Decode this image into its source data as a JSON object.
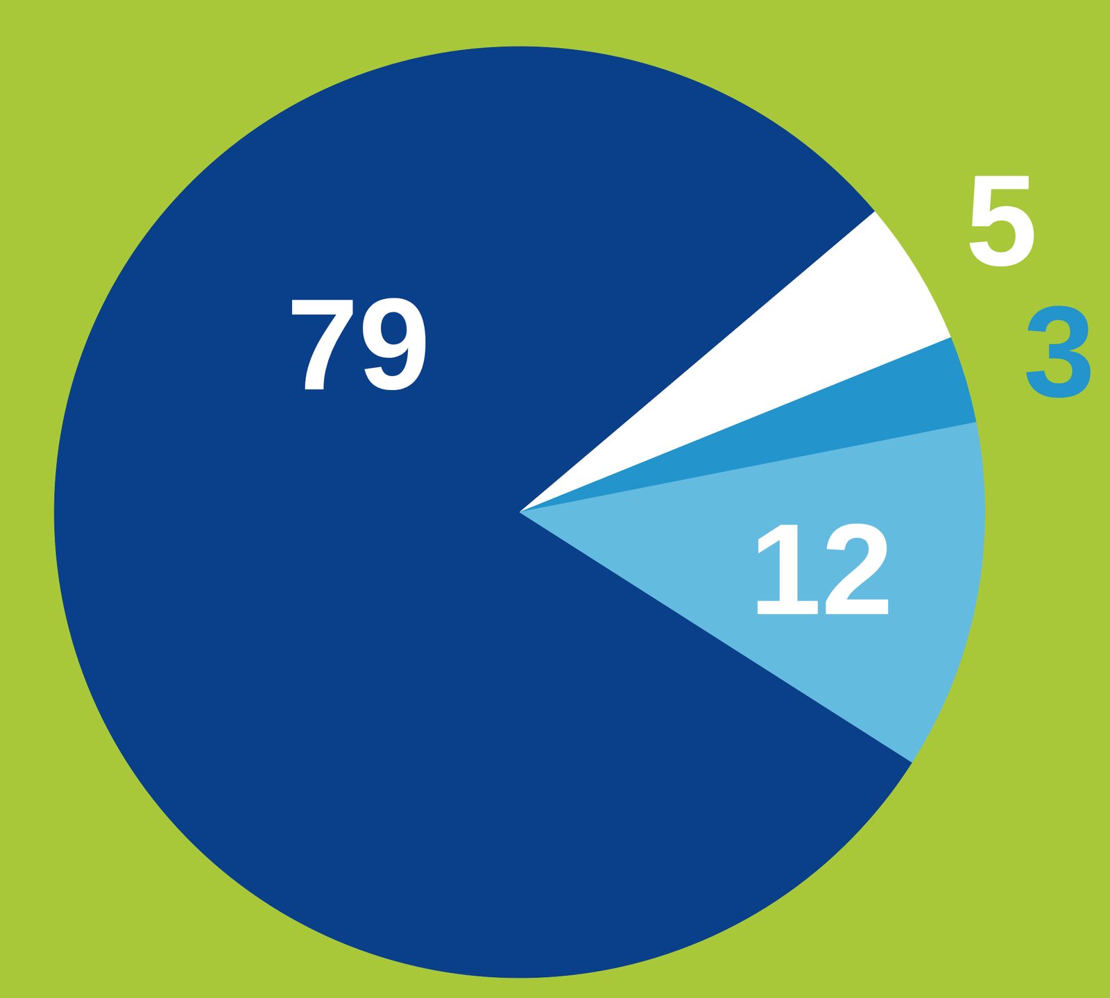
{
  "chart_data": {
    "type": "pie",
    "values": [
      79,
      5,
      3,
      12
    ],
    "colors": [
      "#0a3f8a",
      "#ffffff",
      "#2394cc",
      "#64bbe0"
    ],
    "data_labels": true
  }
}
